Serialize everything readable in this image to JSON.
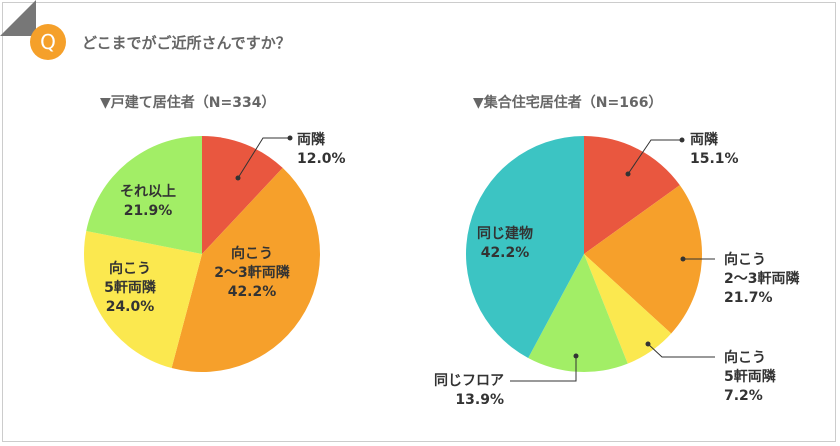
{
  "question": {
    "badge": "Q",
    "text": "どこまでがご近所さんですか？"
  },
  "chart_data": [
    {
      "type": "pie",
      "title": "▼戸建て居住者（N=334）",
      "slices": [
        {
          "label": "両隣",
          "display": "両隣",
          "value": 12.0,
          "pct": "12.0%",
          "color": "#e9573f"
        },
        {
          "label": "向こう2〜3軒両隣",
          "line1": "向こう",
          "line2": "2〜3軒両隣",
          "value": 42.2,
          "pct": "42.2%",
          "color": "#f6a02b"
        },
        {
          "label": "向こう5軒両隣",
          "line1": "向こう",
          "line2": "5軒両隣",
          "value": 24.0,
          "pct": "24.0%",
          "color": "#fbe84f"
        },
        {
          "label": "それ以上",
          "display": "それ以上",
          "value": 21.9,
          "pct": "21.9%",
          "color": "#a2ee66"
        }
      ]
    },
    {
      "type": "pie",
      "title": "▼集合住宅居住者（N=166）",
      "slices": [
        {
          "label": "両隣",
          "display": "両隣",
          "value": 15.1,
          "pct": "15.1%",
          "color": "#e9573f"
        },
        {
          "label": "向こう2〜3軒両隣",
          "line1": "向こう",
          "line2": "2〜3軒両隣",
          "value": 21.7,
          "pct": "21.7%",
          "color": "#f6a02b"
        },
        {
          "label": "向こう5軒両隣",
          "line1": "向こう",
          "line2": "5軒両隣",
          "value": 7.2,
          "pct": "7.2%",
          "color": "#fbe84f"
        },
        {
          "label": "同じフロア",
          "display": "同じフロア",
          "value": 13.9,
          "pct": "13.9%",
          "color": "#a2ee66"
        },
        {
          "label": "同じ建物",
          "display": "同じ建物",
          "value": 42.2,
          "pct": "42.2%",
          "color": "#3cc4c3"
        }
      ]
    }
  ]
}
